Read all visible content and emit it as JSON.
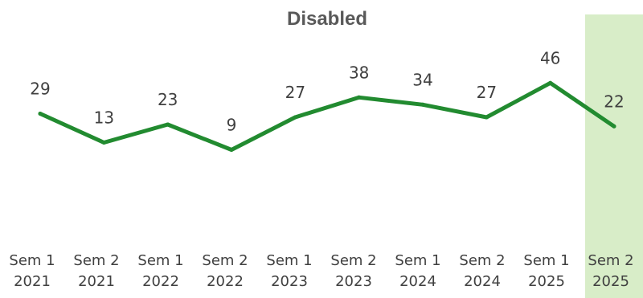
{
  "chart_data": {
    "type": "line",
    "title": "Disabled",
    "xlabel": "",
    "ylabel": "",
    "categories": [
      [
        "Sem 1",
        "2021"
      ],
      [
        "Sem 2",
        "2021"
      ],
      [
        "Sem 1",
        "2022"
      ],
      [
        "Sem 2",
        "2022"
      ],
      [
        "Sem 1",
        "2023"
      ],
      [
        "Sem 2",
        "2023"
      ],
      [
        "Sem 1",
        "2024"
      ],
      [
        "Sem 2",
        "2024"
      ],
      [
        "Sem 1",
        "2025"
      ],
      [
        "Sem 2",
        "2025"
      ]
    ],
    "series": [
      {
        "values": [
          29,
          13,
          23,
          9,
          27,
          38,
          34,
          27,
          46,
          22
        ]
      }
    ],
    "ylim": [
      -45,
      75
    ],
    "grid": false,
    "legend": "none",
    "highlighted_category": [
      "Sem 2",
      "2025"
    ],
    "colors": {
      "line": "#228B30",
      "highlight": "#D8EDC8",
      "title": "#595959",
      "label": "#404040"
    }
  }
}
